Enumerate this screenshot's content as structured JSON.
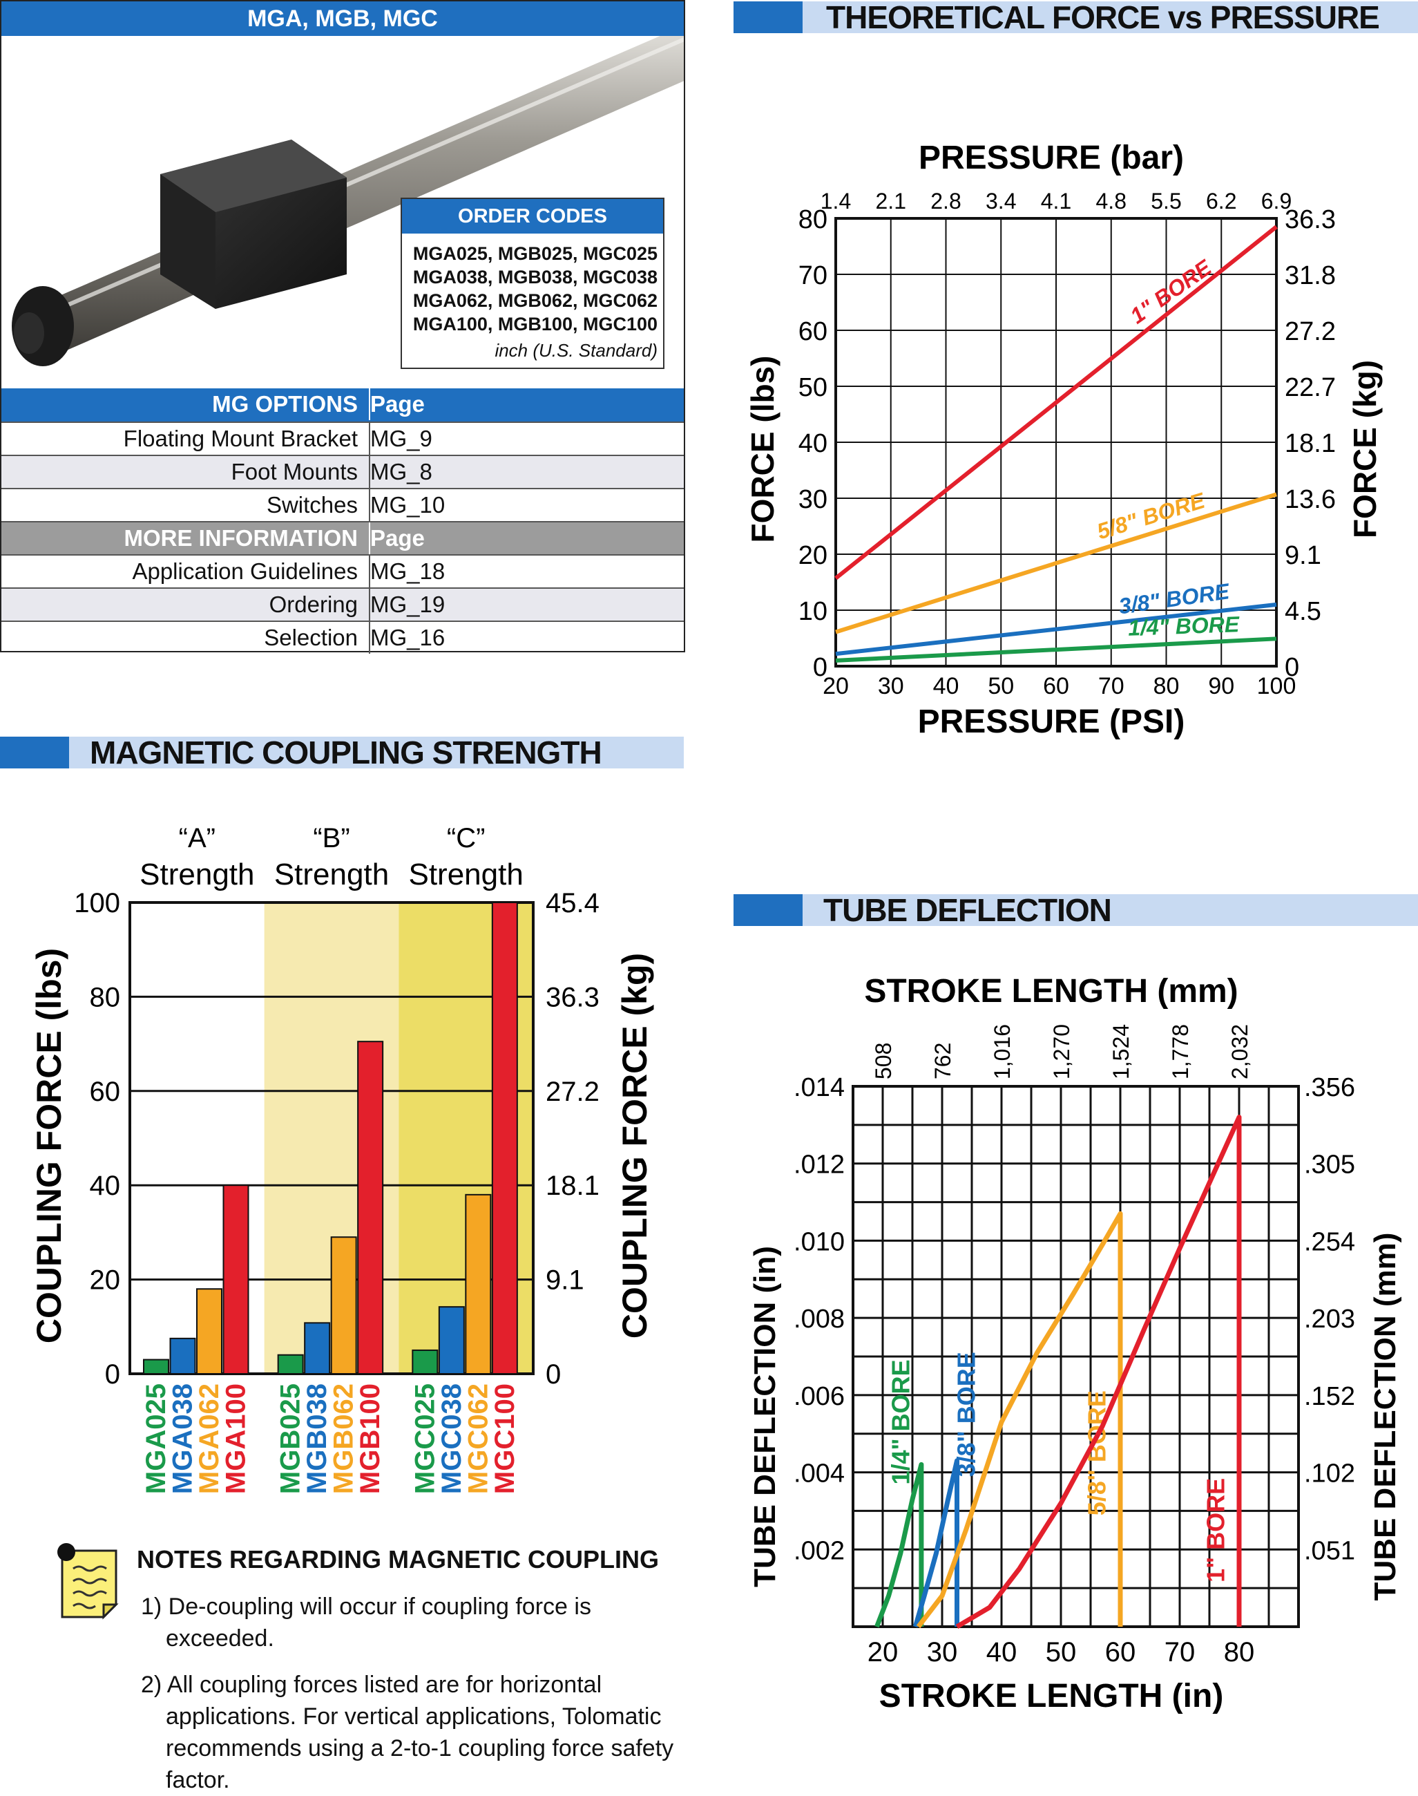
{
  "product": {
    "title": "MGA, MGB, MGC",
    "order_codes": {
      "heading": "ORDER CODES",
      "lines": [
        "MGA025, MGB025, MGC025",
        "MGA038, MGB038, MGC038",
        "MGA062, MGB062, MGC062",
        "MGA100, MGB100, MGC100"
      ],
      "note": "inch (U.S. Standard)"
    },
    "options_table": {
      "options_header": {
        "label": "MG OPTIONS",
        "page": "Page"
      },
      "options": [
        {
          "label": "Floating Mount Bracket",
          "page": "MG_9"
        },
        {
          "label": "Foot Mounts",
          "page": "MG_8"
        },
        {
          "label": "Switches",
          "page": "MG_10"
        }
      ],
      "info_header": {
        "label": "MORE INFORMATION",
        "page": "Page"
      },
      "info": [
        {
          "label": "Application Guidelines",
          "page": "MG_18"
        },
        {
          "label": "Ordering",
          "page": "MG_19"
        },
        {
          "label": "Selection",
          "page": "MG_16"
        }
      ]
    }
  },
  "sections": {
    "force_pressure": "THEORETICAL FORCE vs PRESSURE",
    "coupling": "MAGNETIC COUPLING STRENGTH",
    "deflection": "TUBE DEFLECTION"
  },
  "notes": {
    "title": "NOTES REGARDING MAGNETIC COUPLING",
    "items": [
      "1) De-coupling will occur if coupling force is exceeded.",
      "2) All coupling forces listed are for horizontal applications. For vertical applications, Tolomatic recommends using a 2-to-1 coupling force safety factor."
    ]
  },
  "colors": {
    "green": "#1a9a4a",
    "blue": "#1a6fbf",
    "orange": "#f5a623",
    "red": "#e3202c",
    "header_blue": "#1f6fbf",
    "header_light": "#c8daf2"
  },
  "chart_data": [
    {
      "type": "line",
      "title": "",
      "top_axis_label": "PRESSURE (bar)",
      "top_ticks": [
        "1.4",
        "2.1",
        "2.8",
        "3.4",
        "4.1",
        "4.8",
        "5.5",
        "6.2",
        "6.9"
      ],
      "xlabel": "PRESSURE (PSI)",
      "x_ticks": [
        "20",
        "30",
        "40",
        "50",
        "60",
        "70",
        "80",
        "90",
        "100"
      ],
      "xlim": [
        20,
        100
      ],
      "ylabel": "FORCE (lbs)",
      "y_ticks": [
        "0",
        "10",
        "20",
        "30",
        "40",
        "50",
        "60",
        "70",
        "80"
      ],
      "ylim": [
        0,
        80
      ],
      "ylabel_right": "FORCE (kg)",
      "y_ticks_right": [
        "0",
        "4.5",
        "9.1",
        "13.6",
        "18.1",
        "22.7",
        "27.2",
        "31.8",
        "36.3"
      ],
      "grid": true,
      "series": [
        {
          "name": "1\" BORE",
          "color": "#e3202c",
          "x": [
            20,
            100
          ],
          "y": [
            15.7,
            78.5
          ]
        },
        {
          "name": "5/8\" BORE",
          "color": "#f5a623",
          "x": [
            20,
            100
          ],
          "y": [
            6.1,
            30.7
          ]
        },
        {
          "name": "3/8\" BORE",
          "color": "#1a6fbf",
          "x": [
            20,
            100
          ],
          "y": [
            2.2,
            11.0
          ]
        },
        {
          "name": "1/4\" BORE",
          "color": "#1a9a4a",
          "x": [
            20,
            100
          ],
          "y": [
            1.0,
            4.9
          ]
        }
      ]
    },
    {
      "type": "bar",
      "title": "",
      "groups": [
        "“A” Strength",
        "“B” Strength",
        "“C” Strength"
      ],
      "ylabel": "COUPLING FORCE (lbs)",
      "y_ticks": [
        "0",
        "20",
        "40",
        "60",
        "80",
        "100"
      ],
      "ylim": [
        0,
        100
      ],
      "ylabel_right": "COUPLING FORCE (kg)",
      "y_ticks_right": [
        "0",
        "9.1",
        "18.1",
        "27.2",
        "36.3",
        "45.4"
      ],
      "categories": [
        "MGA025",
        "MGA038",
        "MGA062",
        "MGA100",
        "MGB025",
        "MGB038",
        "MGB062",
        "MGB100",
        "MGC025",
        "MGC038",
        "MGC062",
        "MGC100"
      ],
      "values": [
        3,
        7.5,
        18,
        40,
        4,
        10.8,
        29,
        70.5,
        5,
        14.2,
        38,
        100
      ],
      "bar_colors": [
        "#1a9a4a",
        "#1a6fbf",
        "#f5a623",
        "#e3202c",
        "#1a9a4a",
        "#1a6fbf",
        "#f5a623",
        "#e3202c",
        "#1a9a4a",
        "#1a6fbf",
        "#f5a623",
        "#e3202c"
      ]
    },
    {
      "type": "line",
      "title": "",
      "top_axis_label": "STROKE LENGTH (mm)",
      "top_ticks": [
        "508",
        "762",
        "1,016",
        "1,270",
        "1,524",
        "1,778",
        "2,032"
      ],
      "xlabel": "STROKE LENGTH (in)",
      "x_ticks": [
        "20",
        "30",
        "40",
        "50",
        "60",
        "70",
        "80"
      ],
      "xlim": [
        15,
        90
      ],
      "ylabel": "TUBE DEFLECTION (in)",
      "y_ticks": [
        ".002",
        ".004",
        ".006",
        ".008",
        ".010",
        ".012",
        ".014"
      ],
      "ylim": [
        0,
        0.014
      ],
      "ylabel_right": "TUBE DEFLECTION (mm)",
      "y_ticks_right": [
        ".051",
        ".102",
        ".152",
        ".203",
        ".254",
        ".305",
        ".356"
      ],
      "grid": true,
      "series": [
        {
          "name": "1/4\" BORE",
          "color": "#1a9a4a",
          "x": [
            19,
            21,
            23,
            25,
            26.5
          ],
          "y": [
            0,
            0.0008,
            0.0019,
            0.0033,
            0.0042
          ]
        },
        {
          "name": "3/8\" BORE",
          "color": "#1a6fbf",
          "x": [
            25.5,
            27,
            29,
            31,
            32.5
          ],
          "y": [
            0,
            0.0008,
            0.0019,
            0.0033,
            0.0043
          ]
        },
        {
          "name": "5/8\" BORE",
          "color": "#f5a623",
          "x": [
            26,
            30,
            34,
            40,
            46,
            52,
            57,
            60
          ],
          "y": [
            0,
            0.0008,
            0.0025,
            0.0053,
            0.0071,
            0.0086,
            0.0099,
            0.0107
          ]
        },
        {
          "name": "1\" BORE",
          "color": "#e3202c",
          "x": [
            32.5,
            38,
            43,
            50,
            57,
            64,
            70,
            75,
            80
          ],
          "y": [
            0,
            0.0005,
            0.0015,
            0.0032,
            0.0052,
            0.0077,
            0.0098,
            0.0115,
            0.0132
          ]
        }
      ]
    }
  ]
}
